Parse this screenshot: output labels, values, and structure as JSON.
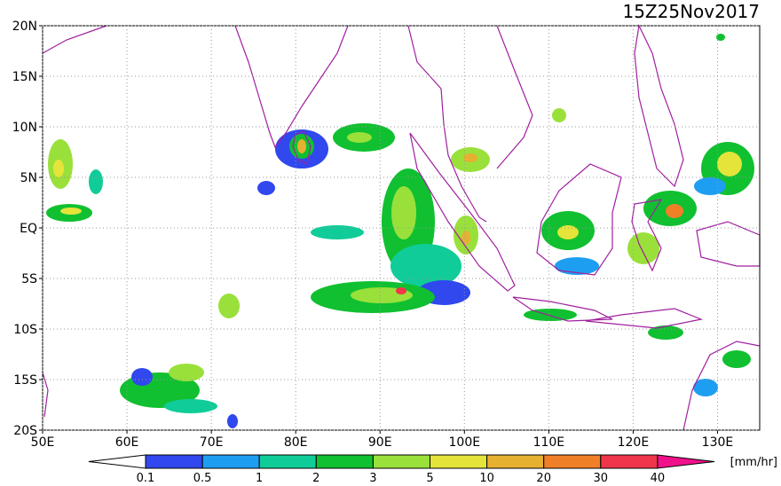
{
  "title": "15Z25Nov2017",
  "map": {
    "lon_range": [
      50,
      135
    ],
    "lat_range": [
      -20,
      20
    ],
    "lon_ticks": [
      {
        "value": 50,
        "label": "50E"
      },
      {
        "value": 60,
        "label": "60E"
      },
      {
        "value": 70,
        "label": "70E"
      },
      {
        "value": 80,
        "label": "80E"
      },
      {
        "value": 90,
        "label": "90E"
      },
      {
        "value": 100,
        "label": "100E"
      },
      {
        "value": 110,
        "label": "110E"
      },
      {
        "value": 120,
        "label": "120E"
      },
      {
        "value": 130,
        "label": "130E"
      }
    ],
    "lat_ticks": [
      {
        "value": 20,
        "label": "20N"
      },
      {
        "value": 15,
        "label": "15N"
      },
      {
        "value": 10,
        "label": "10N"
      },
      {
        "value": 5,
        "label": "5N"
      },
      {
        "value": 0,
        "label": "EQ"
      },
      {
        "value": -5,
        "label": "5S"
      },
      {
        "value": -10,
        "label": "10S"
      },
      {
        "value": -15,
        "label": "15S"
      },
      {
        "value": -20,
        "label": "20S"
      }
    ],
    "grid": true
  },
  "colorbar": {
    "labels": [
      "0.1",
      "0.5",
      "1",
      "2",
      "3",
      "5",
      "10",
      "20",
      "30",
      "40"
    ],
    "colors": [
      "#ffffff",
      "#3048ee",
      "#1e9ef0",
      "#10cc98",
      "#10c030",
      "#9ae03a",
      "#e4e43a",
      "#e6b030",
      "#f08028",
      "#f0364a",
      "#f0108c"
    ],
    "unit": "[mm/hr]"
  }
}
